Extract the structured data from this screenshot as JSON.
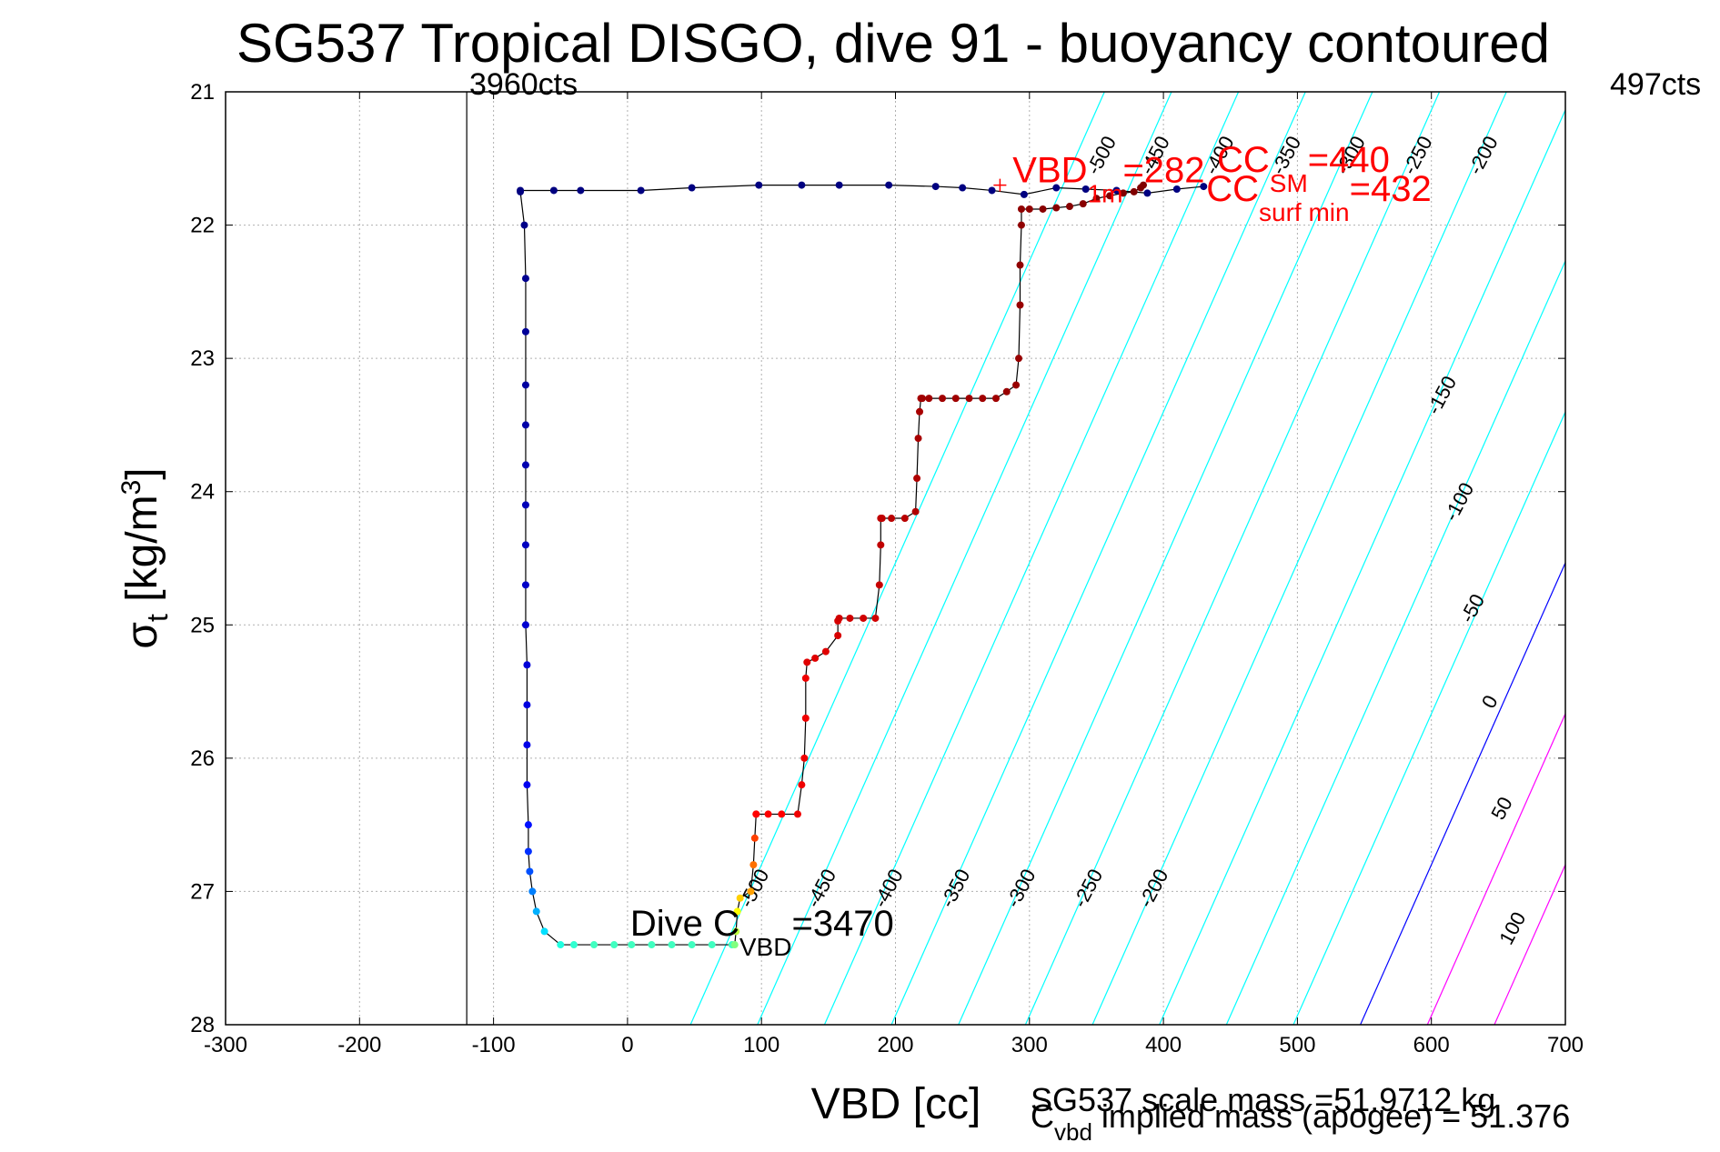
{
  "chart_data": {
    "type": "scatter",
    "title": "SG537 Tropical DISGO, dive 91 - buoyancy contoured",
    "xlabel": "VBD [cc]",
    "ylabel_main": "σ",
    "ylabel_sub": "t",
    "ylabel_unit": "[kg/m",
    "ylabel_sup": "3",
    "ylabel_close": "]",
    "xlim": [
      -300,
      700
    ],
    "ylim": [
      21,
      28
    ],
    "y_reversed": true,
    "grid": true,
    "x_ticks": [
      "-300",
      "-200",
      "-100",
      "0",
      "100",
      "200",
      "300",
      "400",
      "500",
      "600",
      "700"
    ],
    "y_ticks": [
      "21",
      "22",
      "23",
      "24",
      "25",
      "26",
      "27",
      "28"
    ],
    "vbd_line_x": -120,
    "left_counts": "3960cts",
    "right_counts": "497cts",
    "contour_colors": {
      "negative": "#00ffff",
      "zero": "#0000ff",
      "positive": "#ff00ff"
    },
    "contours_upper": [
      {
        "value": -500,
        "label": "-500",
        "x_at_21": 356,
        "x_at_28": 47
      },
      {
        "value": -450,
        "label": "-450",
        "x_at_21": 406,
        "x_at_28": 97
      },
      {
        "value": -400,
        "label": "-400",
        "x_at_21": 456,
        "x_at_28": 147
      },
      {
        "value": -350,
        "label": "-350",
        "x_at_21": 506,
        "x_at_28": 197
      },
      {
        "value": -300,
        "label": "-300",
        "x_at_21": 556,
        "x_at_28": 247
      },
      {
        "value": -250,
        "label": "-250",
        "x_at_21": 606,
        "x_at_28": 297
      },
      {
        "value": -200,
        "label": "-200",
        "x_at_21": 656,
        "x_at_28": 347
      },
      {
        "value": -150,
        "label": "-150",
        "x_at_21": 706,
        "x_at_28": 397
      },
      {
        "value": -100,
        "label": "-100",
        "x_at_21": 756,
        "x_at_28": 447
      },
      {
        "value": -50,
        "label": "-50",
        "x_at_21": 806,
        "x_at_28": 497
      },
      {
        "value": 0,
        "label": "0",
        "x_at_21": 856,
        "x_at_28": 547
      },
      {
        "value": 50,
        "label": "50",
        "x_at_21": 906,
        "x_at_28": 597
      },
      {
        "value": 100,
        "label": "100",
        "x_at_21": 956,
        "x_at_28": 647
      }
    ],
    "contour_labels": [
      {
        "text": "-500",
        "x": 358,
        "y": 21.5
      },
      {
        "text": "-450",
        "x": 398,
        "y": 21.5
      },
      {
        "text": "-400",
        "x": 446,
        "y": 21.5
      },
      {
        "text": "-350",
        "x": 496,
        "y": 21.5
      },
      {
        "text": "-300",
        "x": 544,
        "y": 21.5
      },
      {
        "text": "-250",
        "x": 594,
        "y": 21.5
      },
      {
        "text": "-200",
        "x": 643,
        "y": 21.5
      },
      {
        "text": "-150",
        "x": 612,
        "y": 23.3
      },
      {
        "text": "-100",
        "x": 625,
        "y": 24.1
      },
      {
        "text": "-50",
        "x": 635,
        "y": 24.9
      },
      {
        "text": "0",
        "x": 648,
        "y": 25.6
      },
      {
        "text": "50",
        "x": 657,
        "y": 26.4
      },
      {
        "text": "100",
        "x": 665,
        "y": 27.3
      },
      {
        "text": "-500",
        "x": 99,
        "y": 27.0
      },
      {
        "text": "-450",
        "x": 149,
        "y": 27.0
      },
      {
        "text": "-400",
        "x": 199,
        "y": 27.0
      },
      {
        "text": "-350",
        "x": 249,
        "y": 27.0
      },
      {
        "text": "-300",
        "x": 298,
        "y": 27.0
      },
      {
        "text": "-250",
        "x": 348,
        "y": 27.0
      },
      {
        "text": "-200",
        "x": 397,
        "y": 27.0
      }
    ],
    "series": [
      {
        "phase": "dive",
        "x": [
          -80,
          -77,
          -76,
          -76,
          -76,
          -76,
          -76,
          -76,
          -76,
          -76,
          -76,
          -75,
          -75,
          -75,
          -75,
          -74,
          -74,
          -73,
          -71,
          -68,
          -62,
          -50,
          -40,
          -25,
          -10,
          3,
          18,
          33,
          48,
          63,
          78
        ],
        "y": [
          21.75,
          22.0,
          22.4,
          22.8,
          23.2,
          23.5,
          23.8,
          24.1,
          24.4,
          24.7,
          25.0,
          25.3,
          25.6,
          25.9,
          26.2,
          26.5,
          26.7,
          26.85,
          27.0,
          27.15,
          27.3,
          27.4,
          27.4,
          27.4,
          27.4,
          27.4,
          27.4,
          27.4,
          27.4,
          27.4,
          27.4
        ],
        "colors": [
          "#000080",
          "#000088",
          "#000090",
          "#000098",
          "#0000a0",
          "#0000a8",
          "#0000b0",
          "#0000b8",
          "#0000c0",
          "#0000c8",
          "#0000d0",
          "#0000d8",
          "#0000e0",
          "#0000e8",
          "#0000f0",
          "#0010ff",
          "#0030ff",
          "#0050ff",
          "#0080ff",
          "#00b0ff",
          "#00e0ff",
          "#20ffe0",
          "#30ffd0",
          "#40ffc0",
          "#40ffc0",
          "#40ffc0",
          "#40ffc0",
          "#40ffc0",
          "#40ffc0",
          "#40ffc0",
          "#40ffc0"
        ]
      },
      {
        "phase": "apogee",
        "x": [
          80,
          81,
          82,
          84,
          92,
          94,
          95,
          96
        ],
        "y": [
          27.4,
          27.3,
          27.15,
          27.05,
          27.0,
          26.8,
          26.6,
          26.42
        ],
        "colors": [
          "#80ff80",
          "#c0ff40",
          "#ffff00",
          "#ffd000",
          "#ffa000",
          "#ff7000",
          "#ff4000",
          "#ff1000"
        ]
      },
      {
        "phase": "climb",
        "x": [
          96,
          105,
          115,
          127,
          130,
          132,
          133,
          133,
          134,
          140,
          148,
          157,
          157,
          158,
          166,
          176,
          185,
          188,
          189,
          189,
          190,
          197,
          207,
          215,
          216,
          217,
          218,
          219,
          220,
          225,
          235,
          245,
          255,
          265,
          275,
          283,
          290,
          292,
          293,
          293,
          294,
          294,
          300,
          310,
          320,
          330,
          340,
          350,
          360,
          370,
          378,
          383,
          385
        ],
        "y": [
          26.42,
          26.42,
          26.42,
          26.42,
          26.2,
          26.0,
          25.7,
          25.4,
          25.28,
          25.25,
          25.2,
          25.08,
          24.97,
          24.95,
          24.95,
          24.95,
          24.95,
          24.7,
          24.4,
          24.2,
          24.2,
          24.2,
          24.2,
          24.15,
          23.9,
          23.6,
          23.4,
          23.3,
          23.3,
          23.3,
          23.3,
          23.3,
          23.3,
          23.3,
          23.3,
          23.25,
          23.2,
          23.0,
          22.6,
          22.3,
          22.0,
          21.88,
          21.88,
          21.88,
          21.87,
          21.86,
          21.84,
          21.8,
          21.78,
          21.76,
          21.75,
          21.72,
          21.7
        ],
        "colors": [
          "#ff0000",
          "#ff0000",
          "#ff0000",
          "#f00000",
          "#f00000",
          "#f00000",
          "#f00000",
          "#f00000",
          "#e00000",
          "#e00000",
          "#e00000",
          "#d80000",
          "#d80000",
          "#d00000",
          "#d00000",
          "#d00000",
          "#d00000",
          "#c80000",
          "#c00000",
          "#c00000",
          "#c00000",
          "#b80000",
          "#b80000",
          "#b00000",
          "#b00000",
          "#a80000",
          "#a80000",
          "#a80000",
          "#a00000",
          "#a00000",
          "#a00000",
          "#a00000",
          "#a00000",
          "#a00000",
          "#a00000",
          "#980000",
          "#980000",
          "#980000",
          "#980000",
          "#900000",
          "#900000",
          "#900000",
          "#900000",
          "#880000",
          "#880000",
          "#880000",
          "#880000",
          "#800000",
          "#800000",
          "#800000",
          "#800000",
          "#800000",
          "#800000"
        ]
      },
      {
        "phase": "surface",
        "x": [
          -80,
          -55,
          -35,
          10,
          48,
          98,
          130,
          158,
          195,
          230,
          250,
          272,
          296,
          320,
          342,
          365,
          388,
          410,
          430
        ],
        "y": [
          21.74,
          21.74,
          21.74,
          21.74,
          21.72,
          21.7,
          21.7,
          21.7,
          21.7,
          21.71,
          21.72,
          21.74,
          21.77,
          21.72,
          21.73,
          21.74,
          21.76,
          21.73,
          21.71
        ],
        "colors": [
          "#000080",
          "#000080",
          "#000080",
          "#000080",
          "#000080",
          "#000080",
          "#000080",
          "#000080",
          "#000080",
          "#000080",
          "#000080",
          "#000080",
          "#000080",
          "#000080",
          "#000080",
          "#000080",
          "#000080",
          "#000080",
          "#000080"
        ]
      }
    ],
    "annotations": [
      {
        "id": "vbd1m",
        "color": "red",
        "main": "VBD",
        "sub": "1m",
        "value": "=282",
        "x": 282,
        "y": 21.68
      },
      {
        "id": "ccsm",
        "color": "red",
        "main": "CC",
        "sub": "SM",
        "value": "=440",
        "x": 440,
        "y": 21.6
      },
      {
        "id": "ccsurf",
        "color": "red",
        "main": "CC",
        "sub": "surf min",
        "value": "=432",
        "x": 432,
        "y": 21.82
      },
      {
        "id": "divec",
        "color": "black",
        "main": "Dive C",
        "sub": "VBD",
        "value": "=3470",
        "x": 2,
        "y": 27.33
      }
    ],
    "vbd1m_marker": {
      "x": 278,
      "y": 21.7
    },
    "footer_line1": "SG537 scale mass =51.9712 kg",
    "footer_line2_main": "C",
    "footer_line2_sub": "vbd",
    "footer_line2_rest": " implied mass (apogee) = 51.376"
  }
}
